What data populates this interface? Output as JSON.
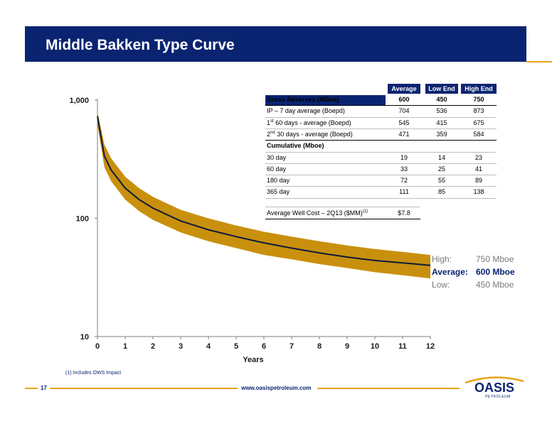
{
  "slide": {
    "title": "Middle Bakken Type Curve",
    "footnote": "(1) Includes OWS Impact",
    "page_number": "17",
    "url": "www.oasispetroleum.com",
    "logo_text": "OASIS",
    "logo_subtext": "PETROLEUM"
  },
  "colors": {
    "navy": "#0a2471",
    "gold": "#c9900e",
    "accent": "#e8a317"
  },
  "legend": [
    {
      "label": "High:",
      "value": "750 Mboe"
    },
    {
      "label": "Average:",
      "value": "600 Mboe"
    },
    {
      "label": "Low:",
      "value": "450 Mboe"
    }
  ],
  "table": {
    "headers": [
      "Average",
      "Low End",
      "High End"
    ],
    "rows": [
      {
        "label": "Gross Reserves (MBoe)",
        "values": [
          "600",
          "450",
          "750"
        ],
        "style": "head"
      },
      {
        "label": "IP – 7 day average (Boepd)",
        "values": [
          "704",
          "536",
          "873"
        ]
      },
      {
        "label_main": "1",
        "label_sup": "st",
        "label_rest": " 60 days - average (Boepd)",
        "values": [
          "545",
          "415",
          "675"
        ]
      },
      {
        "label_main": "2",
        "label_sup": "nd",
        "label_rest": " 30 days - average (Boepd)",
        "values": [
          "471",
          "359",
          "584"
        ]
      },
      {
        "label": "Cumulative (Mboe)",
        "values": [
          "",
          "",
          ""
        ],
        "style": "head"
      },
      {
        "label": "30 day",
        "values": [
          "19",
          "14",
          "23"
        ]
      },
      {
        "label": "60 day",
        "values": [
          "33",
          "25",
          "41"
        ]
      },
      {
        "label": "180 day",
        "values": [
          "72",
          "55",
          "89"
        ]
      },
      {
        "label": "365 day",
        "values": [
          "111",
          "85",
          "138"
        ]
      }
    ],
    "well_cost_label": "Average Well Cost – 2Q13 ($MM)",
    "well_cost_sup": "(1)",
    "well_cost_value": "$7.8"
  },
  "chart_data": {
    "type": "area",
    "xlabel": "Years",
    "ylabel": "",
    "xlim": [
      0,
      12
    ],
    "ylim": [
      10,
      1000
    ],
    "yscale": "log",
    "x_ticks": [
      "0",
      "1",
      "2",
      "3",
      "4",
      "5",
      "6",
      "7",
      "8",
      "9",
      "10",
      "11",
      "12"
    ],
    "y_ticks": [
      "10",
      "100",
      "1,000"
    ],
    "grid": false,
    "x": [
      0,
      0.25,
      0.5,
      1,
      1.5,
      2,
      3,
      4,
      5,
      6,
      7,
      8,
      9,
      10,
      11,
      12
    ],
    "series": [
      {
        "name": "High",
        "values": [
          800,
          420,
          320,
          225,
          180,
          152,
          118,
          100,
          87,
          77,
          70,
          64,
          59,
          55,
          52,
          49
        ]
      },
      {
        "name": "Average",
        "values": [
          730,
          335,
          255,
          180,
          144,
          122,
          95,
          80,
          70,
          62,
          56,
          51,
          47,
          44,
          42,
          40
        ]
      },
      {
        "name": "Low",
        "values": [
          620,
          270,
          205,
          144,
          115,
          97,
          76,
          64,
          56,
          49,
          45,
          41,
          38,
          35,
          33,
          31
        ]
      }
    ]
  }
}
